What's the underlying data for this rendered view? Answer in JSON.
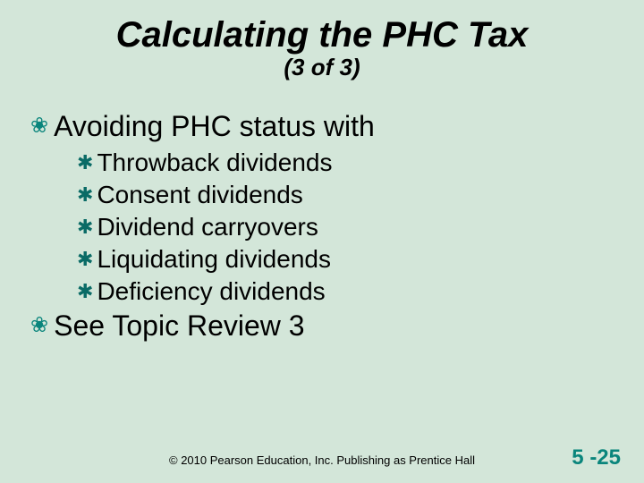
{
  "colors": {
    "background": "#d3e6d9",
    "title": "#000000",
    "text": "#000000",
    "bullet_l1": "#0a857c",
    "bullet_l2": "#0a6b66",
    "footer": "#000000",
    "page_num": "#0a857c"
  },
  "title": {
    "main": "Calculating the PHC Tax",
    "sub": "(3 of 3)",
    "main_fontsize": 40,
    "sub_fontsize": 26,
    "font_style": "bold italic"
  },
  "content": {
    "l1_fontsize": 32,
    "l2_fontsize": 28,
    "bullet_l1_glyph": "❀",
    "bullet_l2_glyph": "✱",
    "items": [
      {
        "text": "Avoiding PHC status with",
        "children": [
          {
            "text": "Throwback dividends"
          },
          {
            "text": "Consent dividends"
          },
          {
            "text": "Dividend carryovers"
          },
          {
            "text": "Liquidating dividends"
          },
          {
            "text": "Deficiency dividends"
          }
        ]
      },
      {
        "text": "See Topic Review 3",
        "children": []
      }
    ]
  },
  "footer": {
    "copyright": "© 2010 Pearson Education, Inc. Publishing as Prentice Hall",
    "page_number": "5 -25",
    "copyright_fontsize": 13,
    "page_number_fontsize": 24
  }
}
